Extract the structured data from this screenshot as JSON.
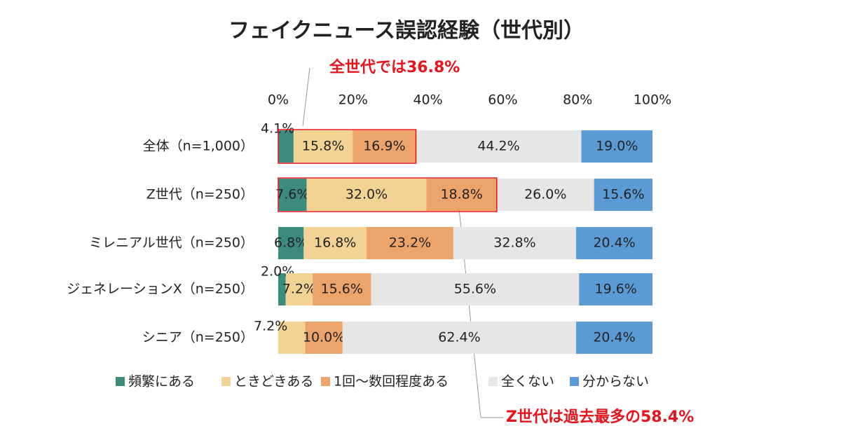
{
  "chart_data": {
    "type": "stacked_bar_horizontal",
    "title": "フェイクニュース誤認経験（世代別）",
    "annotations": [
      "全世代では36.8%",
      "Z世代は過去最多の58.4%"
    ],
    "categories": [
      "全体（n=1,000）",
      "Z世代（n=250）",
      "ミレニアル世代（n=250）",
      "ジェネレーションX（n=250）",
      "シニア（n=250）"
    ],
    "series": [
      {
        "name": "頻繁にある",
        "color": "#3d8b7d",
        "values": [
          4.1,
          7.6,
          6.8,
          2.0,
          0
        ],
        "value_labels": [
          "4.1%",
          "7.6%",
          "6.8%",
          "2.0%",
          null
        ]
      },
      {
        "name": "ときどきある",
        "color": "#f3d394",
        "values": [
          15.8,
          32.0,
          16.8,
          7.2,
          7.2
        ],
        "value_labels": [
          "15.8%",
          "32.0%",
          "16.8%",
          "7.2%",
          "7.2%"
        ]
      },
      {
        "name": "1回～数回程度ある",
        "color": "#eda46a",
        "values": [
          16.9,
          18.8,
          23.2,
          15.6,
          10.0
        ],
        "value_labels": [
          "16.9%",
          "18.8%",
          "23.2%",
          "15.6%",
          "10.0%"
        ]
      },
      {
        "name": "全くない",
        "color": "#e6e6e6",
        "values": [
          44.2,
          26.0,
          32.8,
          55.6,
          62.4
        ],
        "value_labels": [
          "44.2%",
          "26.0%",
          "32.8%",
          "55.6%",
          "62.4%"
        ]
      },
      {
        "name": "分からない",
        "color": "#5b9bd5",
        "values": [
          19.0,
          15.6,
          20.4,
          19.6,
          20.4
        ],
        "value_labels": [
          "19.0%",
          "15.6%",
          "20.4%",
          "19.6%",
          "20.4%"
        ]
      }
    ],
    "xlim": [
      0,
      100
    ],
    "xticks": [
      {
        "value": 0,
        "label": "0%"
      },
      {
        "value": 20,
        "label": "20%"
      },
      {
        "value": 40,
        "label": "40%"
      },
      {
        "value": 60,
        "label": "60%"
      },
      {
        "value": 80,
        "label": "80%"
      },
      {
        "value": 100,
        "label": "100%"
      }
    ]
  }
}
